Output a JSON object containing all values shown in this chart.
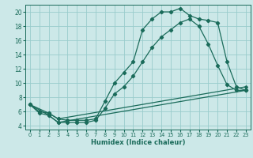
{
  "title": "",
  "xlabel": "Humidex (Indice chaleur)",
  "xlim": [
    -0.5,
    23.5
  ],
  "ylim": [
    3.5,
    21
  ],
  "yticks": [
    4,
    6,
    8,
    10,
    12,
    14,
    16,
    18,
    20
  ],
  "xticks": [
    0,
    1,
    2,
    3,
    4,
    5,
    6,
    7,
    8,
    9,
    10,
    11,
    12,
    13,
    14,
    15,
    16,
    17,
    18,
    19,
    20,
    21,
    22,
    23
  ],
  "bg_color": "#cce8e8",
  "grid_color": "#99cccc",
  "line_color": "#1a6b5a",
  "line1_x": [
    0,
    1,
    2,
    3,
    4,
    5,
    6,
    7,
    8,
    9,
    10,
    11,
    12,
    13,
    14,
    15,
    16,
    17,
    18,
    19,
    20,
    21,
    22,
    23
  ],
  "line1_y": [
    7.0,
    6.0,
    5.8,
    5.0,
    4.8,
    4.8,
    4.8,
    5.0,
    7.5,
    10.0,
    11.5,
    13.0,
    17.5,
    19.0,
    20.0,
    20.0,
    20.5,
    19.5,
    19.0,
    18.8,
    18.5,
    13.0,
    9.5,
    9.0
  ],
  "line2_x": [
    0,
    1,
    2,
    3,
    4,
    5,
    6,
    7,
    8,
    9,
    10,
    11,
    12,
    13,
    14,
    15,
    16,
    17,
    18,
    19,
    20,
    21,
    22,
    23
  ],
  "line2_y": [
    7.0,
    5.8,
    5.5,
    4.5,
    4.5,
    4.5,
    4.5,
    4.8,
    6.5,
    8.5,
    9.5,
    11.0,
    13.0,
    15.0,
    16.5,
    17.5,
    18.5,
    19.0,
    18.0,
    15.5,
    12.5,
    9.8,
    9.0,
    9.0
  ],
  "line3_x": [
    0,
    2,
    3,
    23
  ],
  "line3_y": [
    7.0,
    5.8,
    5.0,
    9.5
  ],
  "line4_x": [
    0,
    2,
    3,
    23
  ],
  "line4_y": [
    7.0,
    5.5,
    4.5,
    9.0
  ]
}
